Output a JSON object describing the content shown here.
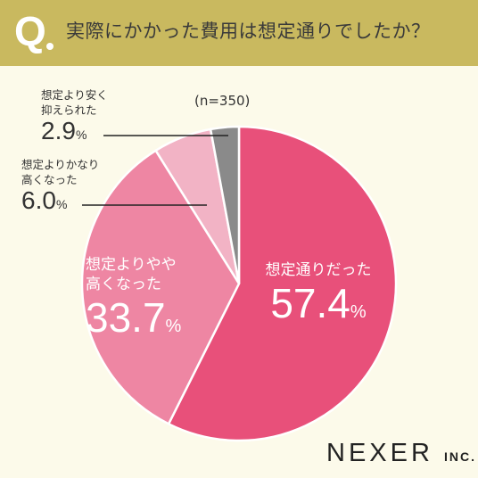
{
  "header": {
    "q_mark": "Q",
    "question": "実際にかかった費用は想定通りでしたか？"
  },
  "sample_size": "(n=350)",
  "logo": {
    "main": "NEXER",
    "sub": "INC."
  },
  "colors": {
    "header_bg": "#c9b95f",
    "page_bg": "#fcfaea",
    "slice_as_expected": "#e8507a",
    "slice_slightly_higher": "#ee86a3",
    "slice_much_higher": "#f2b3c5",
    "slice_cheaper": "#8a8a8a"
  },
  "chart_data": {
    "type": "pie",
    "title": "実際にかかった費用は想定通りでしたか？",
    "start": "12 o'clock, clockwise",
    "slices": [
      {
        "label": "想定通りだった",
        "value": 57.4,
        "display": "57.4",
        "unit": "%"
      },
      {
        "label": "想定よりやや高くなった",
        "line1": "想定よりやや",
        "line2": "高くなった",
        "value": 33.7,
        "display": "33.7",
        "unit": "%"
      },
      {
        "label": "想定よりかなり高くなった",
        "line1": "想定よりかなり",
        "line2": "高くなった",
        "value": 6.0,
        "display": "6.0",
        "unit": "%"
      },
      {
        "label": "想定より安く抑えられた",
        "line1": "想定より安く",
        "line2": "抑えられた",
        "value": 2.9,
        "display": "2.9",
        "unit": "%"
      }
    ]
  }
}
